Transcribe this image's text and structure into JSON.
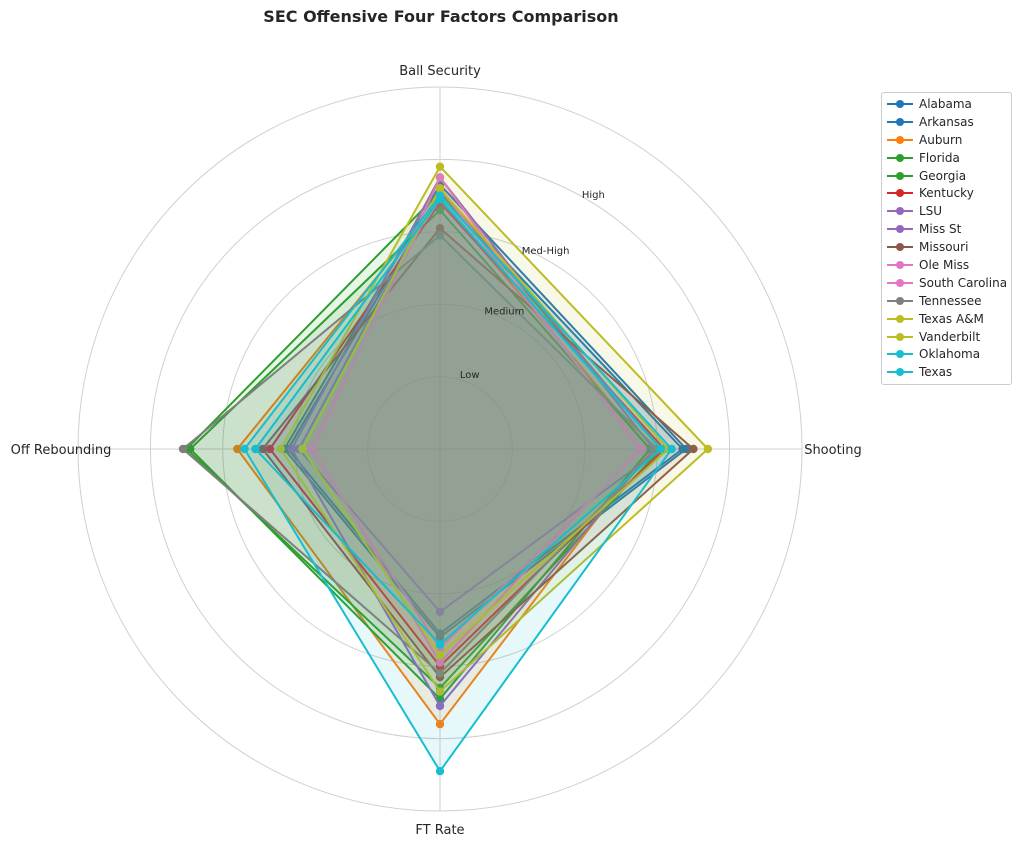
{
  "chart_data": {
    "type": "radar",
    "title": "SEC Offensive Four Factors Comparison",
    "axes": [
      "Ball Security",
      "Shooting",
      "FT Rate",
      "Off Rebounding"
    ],
    "ring_labels": [
      "Low",
      "Medium",
      "Med-High",
      "High"
    ],
    "rlim": [
      0,
      5
    ],
    "grid": true,
    "legend_position": "upper-right-outside",
    "series": [
      {
        "name": "Alabama",
        "color": "#1f77b4",
        "values": [
          3.65,
          3.4,
          2.6,
          2.15
        ]
      },
      {
        "name": "Arkansas",
        "color": "#1f77b4",
        "values": [
          3.55,
          3.35,
          2.55,
          2.1
        ]
      },
      {
        "name": "Auburn",
        "color": "#ff7f0e",
        "values": [
          3.45,
          2.9,
          3.8,
          2.8
        ]
      },
      {
        "name": "Florida",
        "color": "#2ca02c",
        "values": [
          3.3,
          2.9,
          3.45,
          3.45
        ]
      },
      {
        "name": "Georgia",
        "color": "#2ca02c",
        "values": [
          3.55,
          3.05,
          3.3,
          3.5
        ]
      },
      {
        "name": "Kentucky",
        "color": "#d62728",
        "values": [
          3.4,
          3.1,
          3.0,
          2.35
        ]
      },
      {
        "name": "LSU",
        "color": "#9467bd",
        "values": [
          3.75,
          2.95,
          3.55,
          2.05
        ]
      },
      {
        "name": "Miss St",
        "color": "#9467bd",
        "values": [
          3.6,
          3.05,
          2.25,
          1.95
        ]
      },
      {
        "name": "Missouri",
        "color": "#8c564b",
        "values": [
          3.05,
          3.5,
          3.15,
          2.45
        ]
      },
      {
        "name": "Ole Miss",
        "color": "#e377c2",
        "values": [
          3.75,
          2.75,
          2.95,
          1.75
        ]
      },
      {
        "name": "South Carolina",
        "color": "#e377c2",
        "values": [
          3.6,
          2.8,
          2.75,
          1.8
        ]
      },
      {
        "name": "Tennessee",
        "color": "#7f7f7f",
        "values": [
          2.95,
          3.0,
          3.1,
          3.55
        ]
      },
      {
        "name": "Texas A&M",
        "color": "#bcbd22",
        "values": [
          3.9,
          3.7,
          3.35,
          2.2
        ]
      },
      {
        "name": "Vanderbilt",
        "color": "#bcbd22",
        "values": [
          3.6,
          3.15,
          2.85,
          1.9
        ]
      },
      {
        "name": "Oklahoma",
        "color": "#17becf",
        "values": [
          3.45,
          3.05,
          2.7,
          2.55
        ]
      },
      {
        "name": "Texas",
        "color": "#17becf",
        "values": [
          3.5,
          3.2,
          4.45,
          2.7
        ]
      }
    ]
  }
}
